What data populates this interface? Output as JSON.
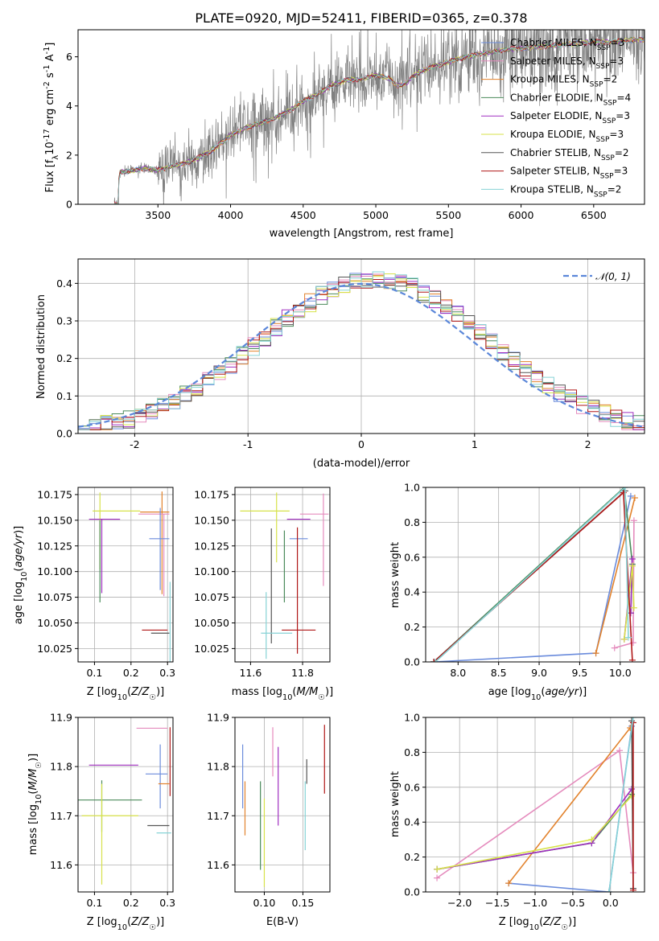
{
  "page_title": "PLATE=0920, MJD=52411, FIBERID=0365, z=0.378",
  "colors": {
    "Chabrier MILES": "#6b8cdc",
    "Salpeter MILES": "#e58bbd",
    "Kroupa MILES": "#e2822c",
    "Chabrier ELODIE": "#4a8a5a",
    "Salpeter ELODIE": "#a02ec0",
    "Kroupa ELODIE": "#d7e24a",
    "Chabrier STELIB": "#555555",
    "Salpeter STELIB": "#b01818",
    "Kroupa STELIB": "#86d3d6",
    "data": "#808080",
    "normal": "#5b87d9"
  },
  "chart_data": [
    {
      "type": "line",
      "id": "spectrum",
      "title": "PLATE=0920, MJD=52411, FIBERID=0365, z=0.378",
      "xlabel": "wavelength [Angstrom, rest frame]",
      "ylabel": "Flux [f_λ 10^-17 erg cm^-2 s^-1 A^-1]",
      "xlim": [
        2950,
        6850
      ],
      "ylim": [
        0,
        7.1
      ],
      "xticks": [
        3500,
        4000,
        4500,
        5000,
        5500,
        6000,
        6500
      ],
      "yticks": [
        0,
        2,
        4,
        6
      ],
      "legend_position": "upper right",
      "legend": [
        "Chabrier MILES, N_SSP=3",
        "Salpeter MILES, N_SSP=3",
        "Kroupa MILES, N_SSP=2",
        "Chabrier ELODIE, N_SSP=4",
        "Salpeter ELODIE, N_SSP=3",
        "Kroupa ELODIE, N_SSP=3",
        "Chabrier STELIB, N_SSP=2",
        "Salpeter STELIB, N_SSP=3",
        "Kroupa STELIB, N_SSP=2"
      ],
      "legend_keys": [
        "Chabrier MILES",
        "Salpeter MILES",
        "Kroupa MILES",
        "Chabrier ELODIE",
        "Salpeter ELODIE",
        "Kroupa ELODIE",
        "Chabrier STELIB",
        "Salpeter STELIB",
        "Kroupa STELIB"
      ],
      "model_continuum": {
        "x": [
          3200,
          3240,
          3300,
          3400,
          3500,
          3600,
          3700,
          3800,
          3900,
          4000,
          4100,
          4200,
          4300,
          4400,
          4500,
          4600,
          4700,
          4800,
          4900,
          5000,
          5100,
          5150,
          5200,
          5300,
          5400,
          5500,
          5600,
          5700,
          5800,
          5900,
          6000,
          6100,
          6200,
          6300,
          6400,
          6500,
          6600,
          6700,
          6800
        ],
        "y": [
          0.0,
          1.3,
          1.35,
          1.45,
          1.4,
          1.55,
          1.7,
          1.95,
          2.3,
          2.8,
          3.1,
          3.3,
          3.5,
          3.8,
          4.2,
          4.5,
          4.85,
          5.05,
          5.1,
          5.25,
          5.1,
          4.8,
          4.9,
          5.4,
          5.6,
          5.8,
          5.95,
          6.1,
          6.2,
          6.3,
          6.35,
          6.4,
          6.45,
          6.5,
          6.55,
          6.6,
          6.6,
          6.65,
          6.7
        ]
      }
    },
    {
      "type": "line",
      "id": "residuals",
      "xlabel": "(data-model)/error",
      "ylabel": "Normed distribution",
      "xlim": [
        -2.5,
        2.5
      ],
      "ylim": [
        0,
        0.465
      ],
      "xticks": [
        -2,
        -1,
        0,
        1,
        2
      ],
      "yticks": [
        0.0,
        0.1,
        0.2,
        0.3,
        0.4
      ],
      "legend": [
        "𝒩(0, 1)"
      ],
      "legend_position": "upper right",
      "grid": true
    },
    {
      "type": "scatter",
      "id": "age_vs_Z",
      "xlabel": "Z [log10(Z/Z☉)]",
      "ylabel": "age [log10(age/yr)]",
      "xlim": [
        0.055,
        0.315
      ],
      "ylim": [
        10.012,
        10.182
      ],
      "xticks": [
        0.1,
        0.2,
        0.3
      ],
      "yticks": [
        10.025,
        10.05,
        10.075,
        10.1,
        10.125,
        10.15,
        10.175
      ],
      "grid": true,
      "points": [
        {
          "model": "Kroupa ELODIE",
          "x": 0.16,
          "y": 10.159,
          "xerr": [
            0.065,
            0.065
          ],
          "yerr": [
            0,
            0
          ]
        },
        {
          "model": "Kroupa ELODIE",
          "x": 0.115,
          "y": 10.152,
          "xerr": [
            0,
            0
          ],
          "yerr": [
            0.05,
            0.025
          ]
        },
        {
          "model": "Salpeter ELODIE",
          "x": 0.12,
          "y": 10.151,
          "xerr": [
            0.035,
            0.05
          ],
          "yerr": [
            0.072,
            0
          ]
        },
        {
          "model": "Chabrier ELODIE",
          "x": 0.115,
          "y": 10.12,
          "xerr": [
            0,
            0
          ],
          "yerr": [
            0.05,
            0.03
          ]
        },
        {
          "model": "Kroupa MILES",
          "x": 0.285,
          "y": 10.158,
          "xerr": [
            0.06,
            0.02
          ],
          "yerr": [
            0.08,
            0.02
          ]
        },
        {
          "model": "Salpeter MILES",
          "x": 0.29,
          "y": 10.156,
          "xerr": [
            0.07,
            0.015
          ],
          "yerr": [
            0.08,
            0
          ]
        },
        {
          "model": "Chabrier MILES",
          "x": 0.28,
          "y": 10.132,
          "xerr": [
            0.03,
            0.025
          ],
          "yerr": [
            0.05,
            0.03
          ]
        },
        {
          "model": "Salpeter STELIB",
          "x": 0.27,
          "y": 10.043,
          "xerr": [
            0.04,
            0.03
          ],
          "yerr": [
            0,
            0
          ]
        },
        {
          "model": "Chabrier STELIB",
          "x": 0.275,
          "y": 10.04,
          "xerr": [
            0.02,
            0.03
          ],
          "yerr": [
            0,
            0
          ]
        },
        {
          "model": "Kroupa STELIB",
          "x": 0.307,
          "y": 10.045,
          "xerr": [
            0,
            0
          ],
          "yerr": [
            0.04,
            0.045
          ]
        }
      ]
    },
    {
      "type": "scatter",
      "id": "age_vs_mass",
      "xlabel": "mass [log10(M/M☉)]",
      "ylabel": "",
      "xlim": [
        11.54,
        11.905
      ],
      "ylim": [
        10.012,
        10.182
      ],
      "xticks": [
        11.6,
        11.8
      ],
      "yticks": [
        10.025,
        10.05,
        10.075,
        10.1,
        10.125,
        10.15,
        10.175
      ],
      "grid": true,
      "points": [
        {
          "model": "Kroupa ELODIE",
          "x": 11.7,
          "y": 10.159,
          "xerr": [
            0.14,
            0.05
          ],
          "yerr": [
            0.05,
            0.018
          ]
        },
        {
          "model": "Salpeter ELODIE",
          "x": 11.8,
          "y": 10.151,
          "xerr": [
            0.06,
            0.03
          ],
          "yerr": [
            0,
            0
          ]
        },
        {
          "model": "Salpeter MILES",
          "x": 11.88,
          "y": 10.156,
          "xerr": [
            0.09,
            0.02
          ],
          "yerr": [
            0.07,
            0.02
          ]
        },
        {
          "model": "Chabrier MILES",
          "x": 11.79,
          "y": 10.132,
          "xerr": [
            0.04,
            0.03
          ],
          "yerr": [
            0,
            0
          ]
        },
        {
          "model": "Chabrier ELODIE",
          "x": 11.73,
          "y": 10.12,
          "xerr": [
            0,
            0
          ],
          "yerr": [
            0.05,
            0.02
          ]
        },
        {
          "model": "Chabrier STELIB",
          "x": 11.68,
          "y": 10.13,
          "xerr": [
            0,
            0
          ],
          "yerr": [
            0.1,
            0.012
          ]
        },
        {
          "model": "Kroupa STELIB",
          "x": 11.66,
          "y": 10.06,
          "xerr": [
            0,
            0
          ],
          "yerr": [
            0.045,
            0.02
          ]
        },
        {
          "model": "Kroupa STELIB",
          "x": 11.7,
          "y": 10.04,
          "xerr": [
            0.06,
            0.06
          ],
          "yerr": [
            0,
            0
          ]
        },
        {
          "model": "Salpeter STELIB",
          "x": 11.78,
          "y": 10.043,
          "xerr": [
            0.06,
            0.07
          ],
          "yerr": [
            0.023,
            0.1
          ]
        }
      ]
    },
    {
      "type": "line",
      "id": "mass_weight_vs_age",
      "xlabel": "age [log10(age/yr)]",
      "ylabel": "mass weight",
      "xlim": [
        7.6,
        10.3
      ],
      "ylim": [
        0,
        1
      ],
      "xticks": [
        8.0,
        8.5,
        9.0,
        9.5,
        10.0
      ],
      "yticks": [
        0.0,
        0.2,
        0.4,
        0.6,
        0.8,
        1.0
      ],
      "grid": true,
      "series": [
        {
          "model": "Chabrier MILES",
          "x": [
            7.7,
            9.7,
            10.13
          ],
          "y": [
            0.0,
            0.05,
            0.95
          ]
        },
        {
          "model": "Salpeter MILES",
          "x": [
            9.93,
            10.16,
            10.17
          ],
          "y": [
            0.08,
            0.11,
            0.81
          ]
        },
        {
          "model": "Kroupa MILES",
          "x": [
            9.7,
            10.18
          ],
          "y": [
            0.05,
            0.94
          ]
        },
        {
          "model": "Chabrier ELODIE",
          "x": [
            7.7,
            10.05,
            10.15,
            10.13
          ],
          "y": [
            0.0,
            1.0,
            0.56,
            0.28
          ]
        },
        {
          "model": "Salpeter ELODIE",
          "x": [
            10.05,
            10.15,
            10.13
          ],
          "y": [
            0.13,
            0.59,
            0.28
          ]
        },
        {
          "model": "Kroupa ELODIE",
          "x": [
            10.05,
            10.15,
            10.17
          ],
          "y": [
            0.13,
            0.55,
            0.31
          ]
        },
        {
          "model": "Chabrier STELIB",
          "x": [
            7.7,
            10.06
          ],
          "y": [
            0.0,
            0.98
          ]
        },
        {
          "model": "Salpeter STELIB",
          "x": [
            7.7,
            10.04,
            10.15
          ],
          "y": [
            0.0,
            0.97,
            0.01
          ]
        },
        {
          "model": "Kroupa STELIB",
          "x": [
            7.72,
            10.06,
            10.1
          ],
          "y": [
            0.0,
            1.0,
            0.14
          ]
        }
      ]
    },
    {
      "type": "scatter",
      "id": "mass_vs_Z",
      "xlabel": "Z [log10(Z/Z☉)]",
      "ylabel": "mass [log10(M/M☉)]",
      "xlim": [
        0.055,
        0.315
      ],
      "ylim": [
        11.545,
        11.9
      ],
      "xticks": [
        0.1,
        0.2,
        0.3
      ],
      "yticks": [
        11.6,
        11.7,
        11.8,
        11.9
      ],
      "grid": true,
      "points": [
        {
          "model": "Salpeter MILES",
          "x": 0.265,
          "y": 11.878,
          "xerr": [
            0.05,
            0.035
          ],
          "yerr": [
            0,
            0
          ]
        },
        {
          "model": "Salpeter ELODIE",
          "x": 0.13,
          "y": 11.803,
          "xerr": [
            0.045,
            0.09
          ],
          "yerr": [
            0,
            0
          ]
        },
        {
          "model": "Chabrier MILES",
          "x": 0.28,
          "y": 11.785,
          "xerr": [
            0.04,
            0.02
          ],
          "yerr": [
            0.07,
            0.06
          ]
        },
        {
          "model": "Kroupa MILES",
          "x": 0.295,
          "y": 11.765,
          "xerr": [
            0.02,
            0.01
          ],
          "yerr": [
            0,
            0
          ]
        },
        {
          "model": "Chabrier ELODIE",
          "x": 0.12,
          "y": 11.732,
          "xerr": [
            0.065,
            0.11
          ],
          "yerr": [
            0.065,
            0.04
          ]
        },
        {
          "model": "Kroupa ELODIE",
          "x": 0.12,
          "y": 11.7,
          "xerr": [
            0.055,
            0.1
          ],
          "yerr": [
            0.14,
            0.065
          ]
        },
        {
          "model": "Chabrier STELIB",
          "x": 0.28,
          "y": 11.68,
          "xerr": [
            0.035,
            0.025
          ],
          "yerr": [
            0,
            0
          ]
        },
        {
          "model": "Kroupa STELIB",
          "x": 0.29,
          "y": 11.665,
          "xerr": [
            0.02,
            0.02
          ],
          "yerr": [
            0,
            0
          ]
        },
        {
          "model": "Salpeter STELIB",
          "x": 0.307,
          "y": 11.8,
          "xerr": [
            0,
            0
          ],
          "yerr": [
            0.06,
            0.08
          ]
        }
      ]
    },
    {
      "type": "scatter",
      "id": "mass_vs_ebv",
      "xlabel": "E(B-V)",
      "ylabel": "",
      "xlim": [
        0.062,
        0.185
      ],
      "ylim": [
        11.545,
        11.9
      ],
      "xticks": [
        0.1,
        0.15
      ],
      "yticks": [
        11.6,
        11.7,
        11.8,
        11.9
      ],
      "grid": true,
      "points": [
        {
          "model": "Chabrier MILES",
          "x": 0.072,
          "y": 11.78,
          "xerr": [
            0,
            0
          ],
          "yerr": [
            0.065,
            0.065
          ]
        },
        {
          "model": "Kroupa MILES",
          "x": 0.075,
          "y": 11.715,
          "xerr": [
            0,
            0
          ],
          "yerr": [
            0.055,
            0.055
          ]
        },
        {
          "model": "Chabrier ELODIE",
          "x": 0.095,
          "y": 11.68,
          "xerr": [
            0,
            0
          ],
          "yerr": [
            0.09,
            0.09
          ]
        },
        {
          "model": "Kroupa ELODIE",
          "x": 0.1,
          "y": 11.645,
          "xerr": [
            0,
            0
          ],
          "yerr": [
            0.09,
            0.09
          ]
        },
        {
          "model": "Salpeter MILES",
          "x": 0.111,
          "y": 11.83,
          "xerr": [
            0,
            0
          ],
          "yerr": [
            0.05,
            0.05
          ]
        },
        {
          "model": "Salpeter ELODIE",
          "x": 0.118,
          "y": 11.76,
          "xerr": [
            0,
            0
          ],
          "yerr": [
            0.08,
            0.08
          ]
        },
        {
          "model": "Kroupa STELIB",
          "x": 0.153,
          "y": 11.7,
          "xerr": [
            0,
            0
          ],
          "yerr": [
            0.07,
            0.07
          ]
        },
        {
          "model": "Chabrier STELIB",
          "x": 0.155,
          "y": 11.79,
          "xerr": [
            0,
            0
          ],
          "yerr": [
            0.025,
            0.025
          ]
        },
        {
          "model": "Salpeter STELIB",
          "x": 0.178,
          "y": 11.815,
          "xerr": [
            0,
            0
          ],
          "yerr": [
            0.07,
            0.07
          ]
        }
      ]
    },
    {
      "type": "line",
      "id": "mass_weight_vs_Z",
      "xlabel": "Z [log10(Z/Z☉)]",
      "ylabel": "mass weight",
      "xlim": [
        -2.45,
        0.45
      ],
      "ylim": [
        0,
        1
      ],
      "xticks": [
        -2.0,
        -1.5,
        -1.0,
        -0.5,
        0.0
      ],
      "yticks": [
        0.0,
        0.2,
        0.4,
        0.6,
        0.8,
        1.0
      ],
      "grid": true,
      "series": [
        {
          "model": "Chabrier MILES",
          "x": [
            -1.35,
            -0.02,
            0.28
          ],
          "y": [
            0.05,
            0.0,
            0.95
          ]
        },
        {
          "model": "Salpeter MILES",
          "x": [
            -2.3,
            0.12,
            0.3
          ],
          "y": [
            0.08,
            0.81,
            0.11
          ]
        },
        {
          "model": "Kroupa MILES",
          "x": [
            -1.35,
            0.26
          ],
          "y": [
            0.05,
            0.94
          ]
        },
        {
          "model": "Chabrier ELODIE",
          "x": [
            -2.3,
            -0.25,
            0.28
          ],
          "y": [
            0.13,
            0.28,
            0.56
          ]
        },
        {
          "model": "Salpeter ELODIE",
          "x": [
            -2.3,
            -0.25,
            0.28
          ],
          "y": [
            0.13,
            0.28,
            0.59
          ]
        },
        {
          "model": "Kroupa ELODIE",
          "x": [
            -2.3,
            -0.25,
            0.28
          ],
          "y": [
            0.13,
            0.3,
            0.55
          ]
        },
        {
          "model": "Chabrier STELIB",
          "x": [
            0.28,
            0.3
          ],
          "y": [
            0.98,
            0.02
          ]
        },
        {
          "model": "Salpeter STELIB",
          "x": [
            0.3,
            0.3
          ],
          "y": [
            0.97,
            0.01
          ]
        },
        {
          "model": "Kroupa STELIB",
          "x": [
            -0.02,
            0.3
          ],
          "y": [
            0.0,
            1.0
          ]
        }
      ]
    }
  ]
}
